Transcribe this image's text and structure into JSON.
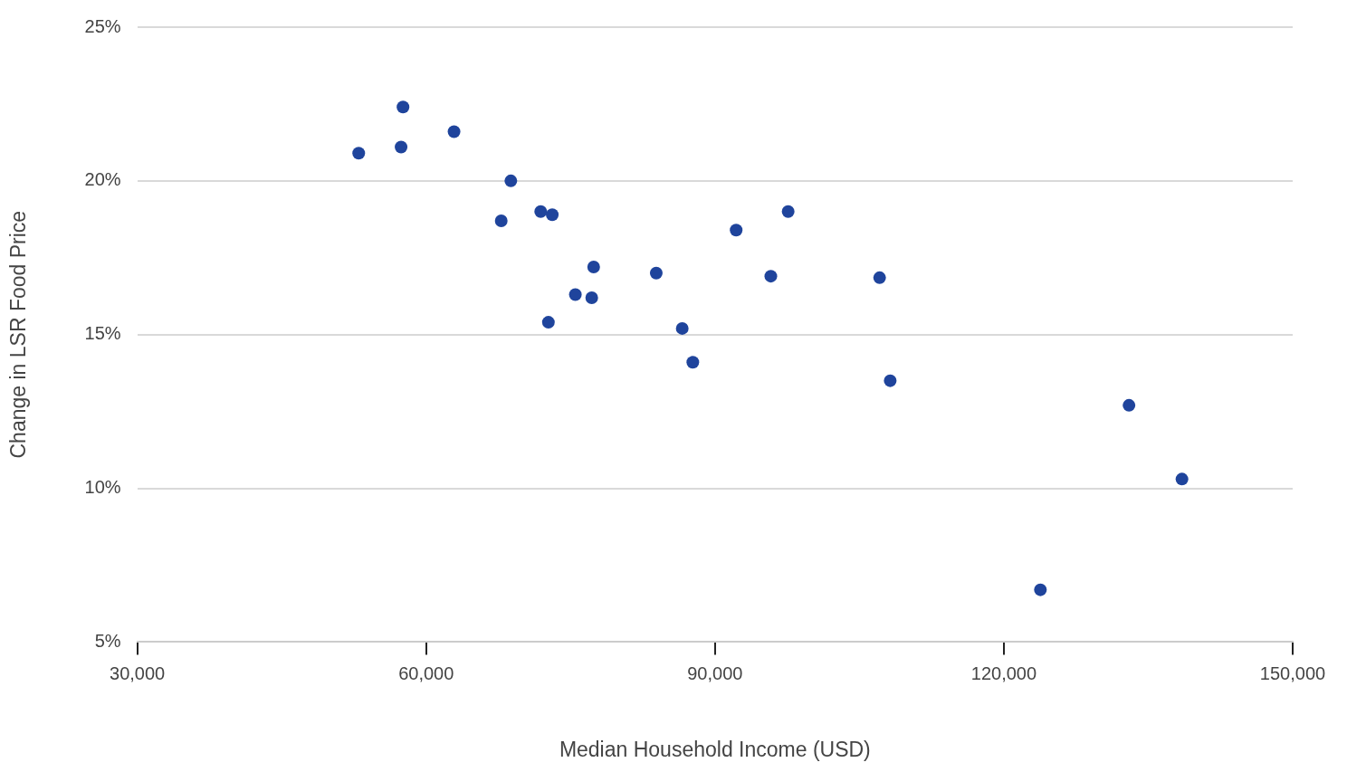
{
  "chart_data": {
    "type": "scatter",
    "xlabel": "Median Household Income (USD)",
    "ylabel": "Change in LSR Food Price",
    "x": [
      53000,
      57600,
      57400,
      62900,
      68800,
      67800,
      71900,
      73100,
      72700,
      75500,
      77200,
      77400,
      83900,
      86600,
      87700,
      92200,
      95800,
      97600,
      107100,
      108200,
      133000,
      138500,
      123800
    ],
    "series": [
      {
        "color": "#1f449c",
        "values": [
          20.9,
          22.4,
          21.1,
          21.6,
          20.0,
          18.7,
          19.0,
          18.9,
          15.4,
          16.3,
          16.2,
          17.2,
          17.0,
          15.2,
          14.1,
          18.4,
          16.9,
          19.0,
          16.85,
          13.5,
          12.7,
          10.3,
          6.7
        ]
      }
    ],
    "xlim": [
      30000,
      150000
    ],
    "xticks": [
      {
        "value": 30000,
        "label": "30,000"
      },
      {
        "value": 60000,
        "label": "60,000"
      },
      {
        "value": 90000,
        "label": "90,000"
      },
      {
        "value": 120000,
        "label": "120,000"
      },
      {
        "value": 150000,
        "label": "150,000"
      }
    ],
    "ylim": [
      5,
      25
    ],
    "yticks": [
      {
        "value": 5,
        "label": "5%"
      },
      {
        "value": 10,
        "label": "10%"
      },
      {
        "value": 15,
        "label": "15%"
      },
      {
        "value": 20,
        "label": "20%"
      },
      {
        "value": 25,
        "label": "25%"
      }
    ],
    "grid": "y",
    "legend": false,
    "marker": "circle"
  }
}
